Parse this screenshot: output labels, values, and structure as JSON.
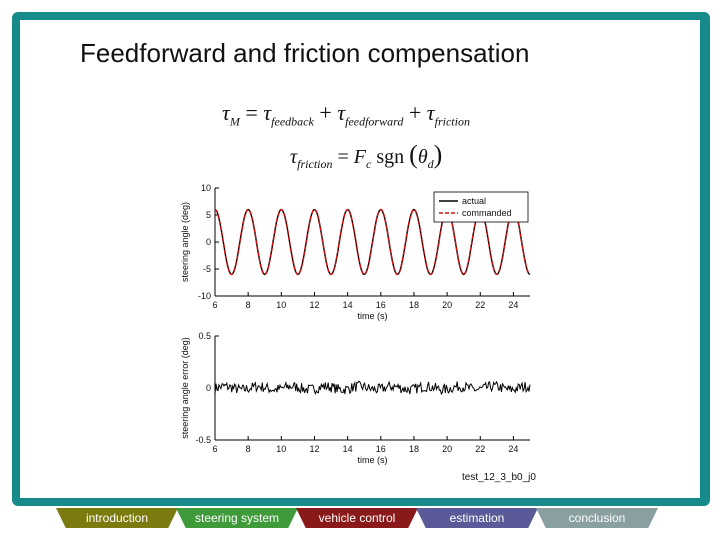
{
  "slide": {
    "title": "Feedforward and friction compensation",
    "caption": "test_12_3_b0_j0"
  },
  "equations": {
    "eq1": {
      "lhs_symbol": "τ",
      "lhs_sub": "M",
      "rhs": [
        {
          "symbol": "τ",
          "sub": "feedback"
        },
        {
          "symbol": "τ",
          "sub": "feedforward"
        },
        {
          "symbol": "τ",
          "sub": "friction"
        }
      ]
    },
    "eq2": {
      "lhs_symbol": "τ",
      "lhs_sub": "friction",
      "coef": "F",
      "coef_sub": "c",
      "func": "sgn",
      "arg_symbol": "θ",
      "arg_sub": "d"
    }
  },
  "chart_data": [
    {
      "type": "line",
      "xlabel": "time (s)",
      "ylabel": "steering angle (deg)",
      "xlim": [
        6,
        25
      ],
      "ylim": [
        -10,
        10
      ],
      "xticks": [
        6,
        8,
        10,
        12,
        14,
        16,
        18,
        20,
        22,
        24
      ],
      "yticks": [
        10,
        5,
        0,
        -5,
        -10
      ],
      "legend_position": "top-right",
      "series": [
        {
          "name": "actual",
          "color": "#000000",
          "style": "solid",
          "amplitude": 6,
          "period_s": 2.0,
          "phase_s": 6.0
        },
        {
          "name": "commanded",
          "color": "#cc1111",
          "style": "dashed",
          "amplitude": 6,
          "period_s": 2.0,
          "phase_s": 6.0
        }
      ]
    },
    {
      "type": "line",
      "xlabel": "time (s)",
      "ylabel": "steering angle error (deg)",
      "xlim": [
        6,
        25
      ],
      "ylim": [
        -0.5,
        0.5
      ],
      "xticks": [
        6,
        8,
        10,
        12,
        14,
        16,
        18,
        20,
        22,
        24
      ],
      "yticks": [
        0.5,
        0,
        -0.5
      ],
      "series": [
        {
          "name": "",
          "color": "#000000",
          "style": "solid",
          "noise_amplitude": 0.05
        }
      ]
    }
  ],
  "navigation": {
    "tabs": [
      {
        "label": "introduction",
        "color": "#7c7b10",
        "text_color": "#ffffff"
      },
      {
        "label": "steering system",
        "color": "#3f9b3a",
        "text_color": "#ffffff"
      },
      {
        "label": "vehicle control",
        "color": "#8a1a1a",
        "text_color": "#ffffff"
      },
      {
        "label": "estimation",
        "color": "#5a5a98",
        "text_color": "#ffffff"
      },
      {
        "label": "conclusion",
        "color": "#8aa0a0",
        "text_color": "#ffffff"
      }
    ]
  }
}
